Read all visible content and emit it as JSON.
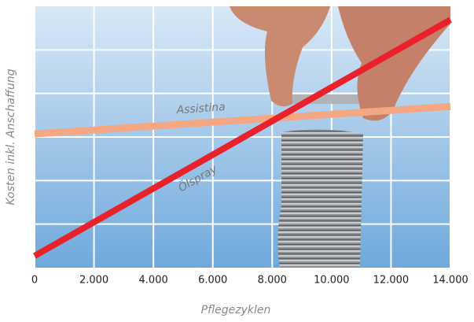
{
  "chart_data": {
    "type": "line",
    "x_title": "Pflegezyklen",
    "y_title": "Kosten inkl. Anschaffung",
    "x": [
      0,
      14000
    ],
    "xlim": [
      0,
      14000
    ],
    "xticks": [
      0,
      {
        "value": 2000,
        "label": "2.000"
      },
      {
        "value": 4000,
        "label": "4.000"
      },
      {
        "value": 6000,
        "label": "6.000"
      },
      {
        "value": 8000,
        "label": "8.000"
      },
      {
        "value": 10000,
        "label": "10.000"
      },
      {
        "value": 12000,
        "label": "12.000"
      },
      {
        "value": 14000,
        "label": "14.000"
      }
    ],
    "ylim": [
      0,
      6
    ],
    "ygrid": [
      1,
      2,
      3,
      4,
      5
    ],
    "grid": true,
    "series": [
      {
        "name": "Assistina",
        "color": "#f5a784",
        "values": [
          3.07,
          3.7
        ]
      },
      {
        "name": "Ölspray",
        "color": "#e8212b",
        "values": [
          0.27,
          5.69
        ]
      }
    ]
  }
}
